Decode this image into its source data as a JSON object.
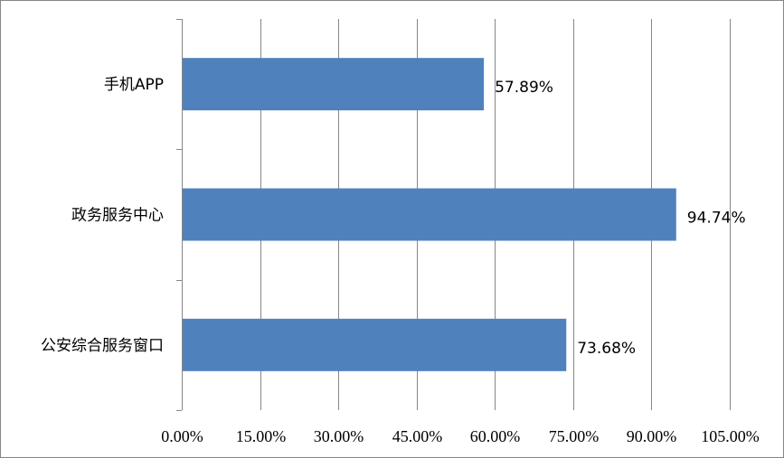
{
  "chart_data": {
    "type": "bar",
    "orientation": "horizontal",
    "categories": [
      "手机APP",
      "政务服务中心",
      "公安综合服务窗口"
    ],
    "values": [
      57.89,
      94.74,
      73.68
    ],
    "value_labels": [
      "57.89%",
      "94.74%",
      "73.68%"
    ],
    "xlim": [
      0,
      105
    ],
    "x_ticks": [
      0,
      15,
      30,
      45,
      60,
      75,
      90,
      105
    ],
    "x_tick_labels": [
      "0.00%",
      "15.00%",
      "30.00%",
      "45.00%",
      "60.00%",
      "75.00%",
      "90.00%",
      "105.00%"
    ],
    "grid": "vertical",
    "legend": "none",
    "bar_color": "#4F81BD",
    "grid_color": "#868686"
  }
}
